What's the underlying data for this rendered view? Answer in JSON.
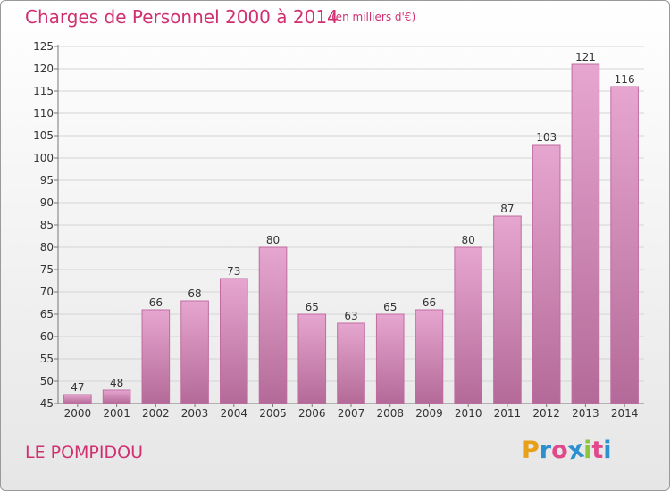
{
  "header": {
    "title": "Charges de Personnel 2000 à 2014",
    "subtitle": "(en milliers d'€)"
  },
  "footer": {
    "place": "LE POMPIDOU",
    "logo_letters": [
      "P",
      "r",
      "o",
      "x",
      "i",
      "t",
      "i"
    ],
    "logo_colors": [
      "#e8a01a",
      "#2b8fd0",
      "#e04a8a",
      "#2b8fd0",
      "#8cc63f",
      "#e04a8a",
      "#2b8fd0"
    ]
  },
  "chart_data": {
    "type": "bar",
    "title": "Charges de Personnel 2000 à 2014",
    "subtitle": "(en milliers d'€)",
    "categories": [
      "2000",
      "2001",
      "2002",
      "2003",
      "2004",
      "2005",
      "2006",
      "2007",
      "2008",
      "2009",
      "2010",
      "2011",
      "2012",
      "2013",
      "2014"
    ],
    "values": [
      47,
      48,
      66,
      68,
      73,
      80,
      65,
      63,
      65,
      66,
      80,
      87,
      103,
      121,
      116
    ],
    "ylim": [
      45,
      125
    ],
    "yticks": [
      45,
      50,
      55,
      60,
      65,
      70,
      75,
      80,
      85,
      90,
      95,
      100,
      105,
      110,
      115,
      120,
      125
    ],
    "grid": true,
    "bar_color_top": "#e6a6cf",
    "bar_color_bottom": "#b46a98",
    "bar_edge_color": "#c06ca0"
  }
}
